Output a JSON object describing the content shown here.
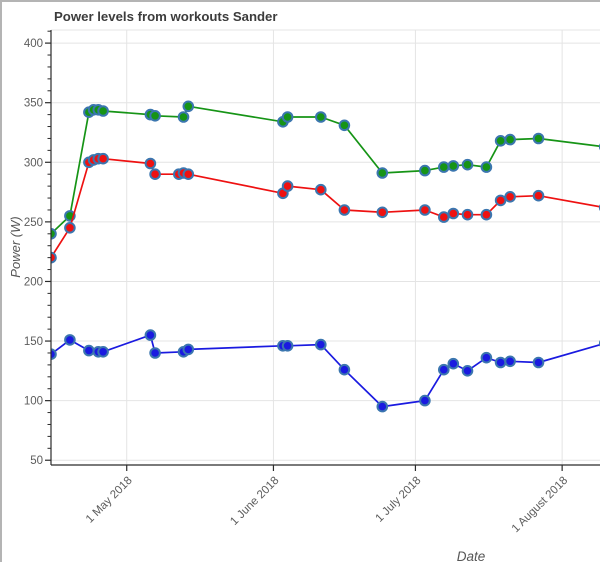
{
  "chart_data": {
    "type": "line",
    "title": "Power levels from workouts Sander",
    "xlabel": "Date",
    "ylabel": "Power (W)",
    "legend": "none",
    "grid": true,
    "ylim": [
      46,
      411
    ],
    "xlim": [
      "2018-04-15",
      "2018-08-09"
    ],
    "y_ticks": [
      50,
      100,
      150,
      200,
      250,
      300,
      350,
      400
    ],
    "y_minor_step": 10,
    "x_ticks": [
      {
        "date": "2018-05-01",
        "label": "1 May 2018"
      },
      {
        "date": "2018-06-01",
        "label": "1 June 2018"
      },
      {
        "date": "2018-07-01",
        "label": "1 July 2018"
      },
      {
        "date": "2018-08-01",
        "label": "1 August 2018"
      }
    ],
    "style": {
      "grid_color": "#e4e4e4",
      "axis_color": "#2b2b2b",
      "tick_label_color": "#5c5c5c",
      "title_color": "#3c3c3c",
      "marker_edge_color": "#3b76af",
      "window_border_color": "#b4b4b4"
    },
    "series": [
      {
        "name": "green",
        "color": "#169416",
        "points": [
          {
            "date": "2018-04-15",
            "value": 240
          },
          {
            "date": "2018-04-19",
            "value": 255
          },
          {
            "date": "2018-04-23",
            "value": 342
          },
          {
            "date": "2018-04-24",
            "value": 344
          },
          {
            "date": "2018-04-25",
            "value": 344
          },
          {
            "date": "2018-04-26",
            "value": 343
          },
          {
            "date": "2018-05-06",
            "value": 340
          },
          {
            "date": "2018-05-07",
            "value": 339
          },
          {
            "date": "2018-05-13",
            "value": 338
          },
          {
            "date": "2018-05-14",
            "value": 347
          },
          {
            "date": "2018-06-03",
            "value": 334
          },
          {
            "date": "2018-06-04",
            "value": 338
          },
          {
            "date": "2018-06-11",
            "value": 338
          },
          {
            "date": "2018-06-16",
            "value": 331
          },
          {
            "date": "2018-06-24",
            "value": 291
          },
          {
            "date": "2018-07-03",
            "value": 293
          },
          {
            "date": "2018-07-07",
            "value": 296
          },
          {
            "date": "2018-07-09",
            "value": 297
          },
          {
            "date": "2018-07-12",
            "value": 298
          },
          {
            "date": "2018-07-16",
            "value": 296
          },
          {
            "date": "2018-07-19",
            "value": 318
          },
          {
            "date": "2018-07-21",
            "value": 319
          },
          {
            "date": "2018-07-27",
            "value": 320
          },
          {
            "date": "2018-08-10",
            "value": 313
          }
        ]
      },
      {
        "name": "red",
        "color": "#ee1111",
        "points": [
          {
            "date": "2018-04-15",
            "value": 220
          },
          {
            "date": "2018-04-19",
            "value": 245
          },
          {
            "date": "2018-04-23",
            "value": 300
          },
          {
            "date": "2018-04-24",
            "value": 302
          },
          {
            "date": "2018-04-25",
            "value": 303
          },
          {
            "date": "2018-04-26",
            "value": 303
          },
          {
            "date": "2018-05-06",
            "value": 299
          },
          {
            "date": "2018-05-07",
            "value": 290
          },
          {
            "date": "2018-05-12",
            "value": 290
          },
          {
            "date": "2018-05-13",
            "value": 291
          },
          {
            "date": "2018-05-14",
            "value": 290
          },
          {
            "date": "2018-06-03",
            "value": 274
          },
          {
            "date": "2018-06-04",
            "value": 280
          },
          {
            "date": "2018-06-11",
            "value": 277
          },
          {
            "date": "2018-06-16",
            "value": 260
          },
          {
            "date": "2018-06-24",
            "value": 258
          },
          {
            "date": "2018-07-03",
            "value": 260
          },
          {
            "date": "2018-07-07",
            "value": 254
          },
          {
            "date": "2018-07-09",
            "value": 257
          },
          {
            "date": "2018-07-12",
            "value": 256
          },
          {
            "date": "2018-07-16",
            "value": 256
          },
          {
            "date": "2018-07-19",
            "value": 268
          },
          {
            "date": "2018-07-21",
            "value": 271
          },
          {
            "date": "2018-07-27",
            "value": 272
          },
          {
            "date": "2018-08-10",
            "value": 262
          }
        ]
      },
      {
        "name": "blue",
        "color": "#1a1ae0",
        "points": [
          {
            "date": "2018-04-15",
            "value": 139
          },
          {
            "date": "2018-04-19",
            "value": 151
          },
          {
            "date": "2018-04-23",
            "value": 142
          },
          {
            "date": "2018-04-25",
            "value": 141
          },
          {
            "date": "2018-04-26",
            "value": 141
          },
          {
            "date": "2018-05-06",
            "value": 155
          },
          {
            "date": "2018-05-07",
            "value": 140
          },
          {
            "date": "2018-05-13",
            "value": 141
          },
          {
            "date": "2018-05-14",
            "value": 143
          },
          {
            "date": "2018-06-03",
            "value": 146
          },
          {
            "date": "2018-06-04",
            "value": 146
          },
          {
            "date": "2018-06-11",
            "value": 147
          },
          {
            "date": "2018-06-16",
            "value": 126
          },
          {
            "date": "2018-06-24",
            "value": 95
          },
          {
            "date": "2018-07-03",
            "value": 100
          },
          {
            "date": "2018-07-07",
            "value": 126
          },
          {
            "date": "2018-07-09",
            "value": 131
          },
          {
            "date": "2018-07-12",
            "value": 125
          },
          {
            "date": "2018-07-16",
            "value": 136
          },
          {
            "date": "2018-07-19",
            "value": 132
          },
          {
            "date": "2018-07-21",
            "value": 133
          },
          {
            "date": "2018-07-27",
            "value": 132
          },
          {
            "date": "2018-08-10",
            "value": 148
          }
        ]
      }
    ]
  }
}
